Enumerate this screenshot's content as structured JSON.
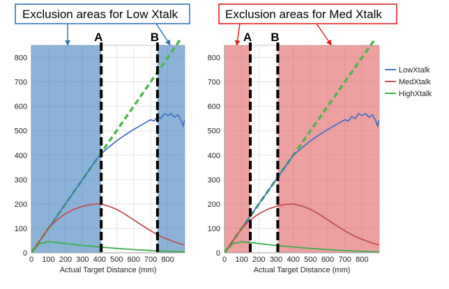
{
  "colors": {
    "low": "#4472C4",
    "med": "#C0504D",
    "high": "#3DAE49",
    "diagonal": "#4CB848",
    "left_exclusion": "#2E75B6",
    "right_exclusion": "#E06666",
    "left_box_border": "#2E75B6",
    "right_box_border": "#E02020"
  },
  "chart_data": [
    {
      "type": "line",
      "callout": "Exclusion areas for Low Xtalk",
      "xlabel": "Actual Target Distance (mm)",
      "ylabel": "",
      "xlim": [
        0,
        900
      ],
      "ylim": [
        0,
        850
      ],
      "xticks": [
        0,
        100,
        200,
        300,
        400,
        500,
        600,
        700,
        800
      ],
      "yticks": [
        0,
        100,
        200,
        300,
        400,
        500,
        600,
        700,
        800
      ],
      "grid": true,
      "markers": [
        {
          "label": "A",
          "x": 410
        },
        {
          "label": "B",
          "x": 740
        }
      ],
      "exclusion_ranges": [
        [
          0,
          410
        ],
        [
          740,
          900
        ]
      ],
      "reference_line": {
        "x": [
          0,
          900
        ],
        "y": [
          0,
          900
        ]
      },
      "series": [
        {
          "key": "low",
          "x": [
            0,
            50,
            100,
            150,
            200,
            250,
            300,
            350,
            400,
            450,
            500,
            550,
            600,
            650,
            700,
            720,
            740,
            760,
            780,
            800,
            820,
            840,
            860,
            880,
            890,
            900
          ],
          "y": [
            0,
            50,
            100,
            150,
            200,
            250,
            300,
            350,
            400,
            430,
            458,
            483,
            505,
            525,
            545,
            540,
            558,
            550,
            570,
            562,
            570,
            555,
            565,
            540,
            520,
            545
          ]
        },
        {
          "key": "med",
          "x": [
            0,
            50,
            100,
            150,
            200,
            250,
            300,
            350,
            400,
            450,
            500,
            550,
            600,
            650,
            700,
            750,
            800,
            850,
            900
          ],
          "y": [
            0,
            50,
            100,
            135,
            160,
            178,
            190,
            198,
            200,
            192,
            178,
            158,
            135,
            112,
            90,
            70,
            55,
            42,
            32
          ]
        },
        {
          "key": "high",
          "x": [
            0,
            50,
            100,
            150,
            200,
            250,
            300,
            350,
            400,
            450,
            500,
            600,
            700,
            800,
            900
          ],
          "y": [
            0,
            38,
            45,
            42,
            38,
            34,
            30,
            27,
            24,
            21,
            18,
            13,
            9,
            6,
            4
          ]
        }
      ]
    },
    {
      "type": "line",
      "callout": "Exclusion areas for Med Xtalk",
      "xlabel": "Actual Target Distance (mm)",
      "ylabel": "",
      "xlim": [
        0,
        900
      ],
      "ylim": [
        0,
        850
      ],
      "xticks": [
        0,
        100,
        200,
        300,
        400,
        500,
        600,
        700,
        800
      ],
      "yticks": [
        0,
        100,
        200,
        300,
        400,
        500,
        600,
        700,
        800
      ],
      "grid": true,
      "markers": [
        {
          "label": "A",
          "x": 150
        },
        {
          "label": "B",
          "x": 310
        }
      ],
      "exclusion_ranges": [
        [
          0,
          150
        ],
        [
          310,
          900
        ]
      ],
      "reference_line": {
        "x": [
          0,
          900
        ],
        "y": [
          0,
          900
        ]
      },
      "series": [
        {
          "key": "low",
          "x": [
            0,
            50,
            100,
            150,
            200,
            250,
            300,
            350,
            400,
            450,
            500,
            550,
            600,
            650,
            700,
            720,
            740,
            760,
            780,
            800,
            820,
            840,
            860,
            880,
            890,
            900
          ],
          "y": [
            0,
            50,
            100,
            150,
            200,
            250,
            300,
            350,
            400,
            430,
            458,
            483,
            505,
            525,
            545,
            540,
            558,
            550,
            570,
            562,
            570,
            555,
            565,
            540,
            520,
            545
          ]
        },
        {
          "key": "med",
          "x": [
            0,
            50,
            100,
            150,
            200,
            250,
            300,
            350,
            400,
            450,
            500,
            550,
            600,
            650,
            700,
            750,
            800,
            850,
            900
          ],
          "y": [
            0,
            50,
            100,
            135,
            160,
            178,
            190,
            198,
            200,
            192,
            178,
            158,
            135,
            112,
            90,
            70,
            55,
            42,
            32
          ]
        },
        {
          "key": "high",
          "x": [
            0,
            50,
            100,
            150,
            200,
            250,
            300,
            350,
            400,
            450,
            500,
            600,
            700,
            800,
            900
          ],
          "y": [
            0,
            38,
            45,
            42,
            38,
            34,
            30,
            27,
            24,
            21,
            18,
            13,
            9,
            6,
            4
          ]
        }
      ]
    }
  ],
  "legend": [
    {
      "key": "low",
      "label": "LowXtalk"
    },
    {
      "key": "med",
      "label": "MedXtalk"
    },
    {
      "key": "high",
      "label": "HighXtalk"
    }
  ]
}
